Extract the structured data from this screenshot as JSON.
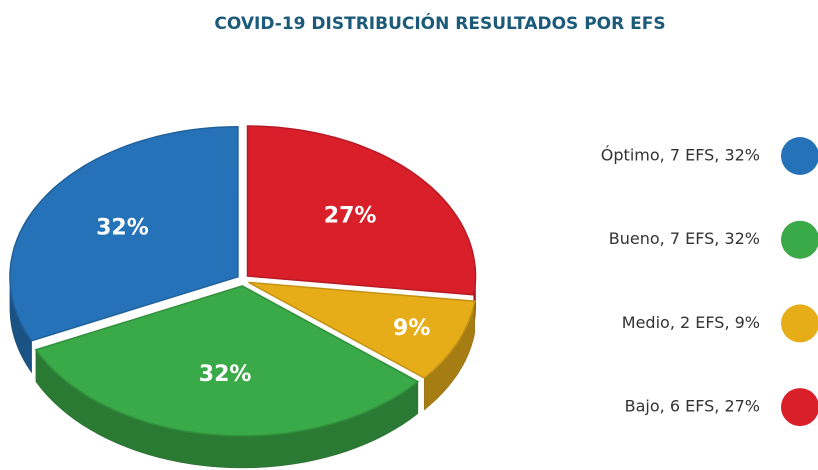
{
  "chart_data": {
    "type": "pie",
    "title": "COVID-19 DISTRIBUCIÓN RESULTADOS POR EFS",
    "categories": [
      "Bajo, 6 EFS, 27%",
      "Medio, 2 EFS, 9%",
      "Bueno, 7 EFS, 32%",
      "Óptimo, 7 EFS, 32%"
    ],
    "values": [
      27,
      9,
      32,
      32
    ],
    "value_labels": [
      "27%",
      "9%",
      "32%",
      "32%"
    ],
    "colors": [
      "#d91f29",
      "#e6ad19",
      "#3aa947",
      "#2672b8"
    ],
    "legend": "right"
  }
}
